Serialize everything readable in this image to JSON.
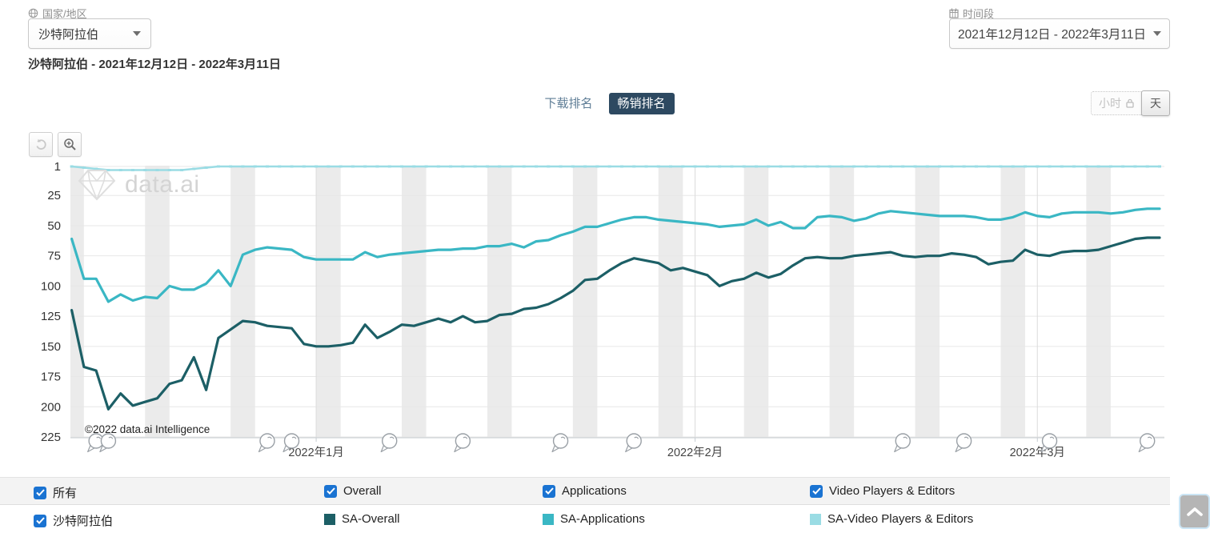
{
  "header": {
    "country_label": "国家/地区",
    "country_value": "沙特阿拉伯",
    "period_label": "时间段",
    "period_value": "2021年12月12日 - 2022年3月11日",
    "title": "沙特阿拉伯 - 2021年12月12日 - 2022年3月11日"
  },
  "tabs": {
    "download": "下载排名",
    "grossing": "畅销排名"
  },
  "granularity": {
    "hour": "小时",
    "day": "天"
  },
  "colors": {
    "checkbox_blue": "#1a73d2",
    "tab_active_bg": "#2d4961",
    "weekend_band": "#ebebeb",
    "gridline": "#e7e7e7",
    "month_line": "#dcdcdc",
    "axis_line": "#c7cdd2",
    "marker_stroke": "#9aa0a6"
  },
  "chart_data": {
    "type": "line",
    "title": "沙特阿拉伯 - 2021年12月12日 - 2022年3月11日",
    "x_start_date": "2021-12-12",
    "x_end_date": "2022-03-11",
    "days": 90,
    "y_axis": {
      "inverted": true,
      "min": 1,
      "max": 225,
      "ticks": [
        1,
        25,
        50,
        75,
        100,
        125,
        150,
        175,
        200,
        225
      ]
    },
    "x_ticks": [
      {
        "day": 20,
        "label": "2022年1月"
      },
      {
        "day": 51,
        "label": "2022年2月"
      },
      {
        "day": 79,
        "label": "2022年3月"
      }
    ],
    "weekend_band_start_days": [
      6,
      13,
      20,
      27,
      34,
      41,
      48,
      55,
      62,
      69,
      76,
      83
    ],
    "annotation_marker_days": [
      2,
      3,
      16,
      18,
      26,
      32,
      40,
      46,
      68,
      73,
      80,
      88
    ],
    "series": [
      {
        "name": "SA-Video Players & Editors",
        "color": "#9adce4",
        "markers": true,
        "values": [
          1,
          2,
          3,
          4,
          4,
          4,
          4,
          4,
          4,
          4,
          3,
          2,
          1,
          1,
          1,
          1,
          1,
          1,
          1,
          1,
          1,
          1,
          1,
          1,
          1,
          1,
          1,
          1,
          1,
          1,
          1,
          1,
          1,
          1,
          1,
          1,
          1,
          1,
          1,
          1,
          1,
          1,
          1,
          1,
          1,
          1,
          1,
          1,
          1,
          1,
          1,
          1,
          1,
          1,
          1,
          1,
          1,
          1,
          1,
          1,
          1,
          1,
          1,
          1,
          1,
          1,
          1,
          1,
          1,
          1,
          1,
          1,
          1,
          1,
          1,
          1,
          1,
          1,
          1,
          1,
          1,
          1,
          1,
          1,
          1,
          1,
          1,
          1,
          1,
          1
        ]
      },
      {
        "name": "SA-Applications",
        "color": "#3ab7c4",
        "markers": false,
        "values": [
          61,
          94,
          94,
          113,
          107,
          112,
          109,
          110,
          100,
          103,
          103,
          98,
          87,
          100,
          74,
          70,
          68,
          69,
          70,
          76,
          78,
          78,
          78,
          78,
          72,
          76,
          74,
          73,
          72,
          71,
          70,
          70,
          69,
          69,
          67,
          67,
          65,
          68,
          63,
          62,
          58,
          55,
          51,
          51,
          48,
          45,
          43,
          43,
          45,
          46,
          47,
          48,
          49,
          51,
          50,
          49,
          45,
          50,
          47,
          52,
          52,
          43,
          42,
          43,
          46,
          44,
          40,
          38,
          39,
          40,
          41,
          42,
          42,
          42,
          43,
          45,
          45,
          43,
          39,
          42,
          43,
          40,
          39,
          39,
          39,
          40,
          39,
          37,
          36,
          36
        ]
      },
      {
        "name": "SA-Overall",
        "color": "#1c5f66",
        "markers": false,
        "values": [
          120,
          167,
          170,
          202,
          189,
          199,
          196,
          193,
          181,
          178,
          159,
          186,
          143,
          136,
          129,
          130,
          133,
          134,
          135,
          148,
          150,
          150,
          149,
          147,
          132,
          143,
          138,
          132,
          133,
          130,
          127,
          130,
          125,
          130,
          129,
          124,
          123,
          119,
          118,
          115,
          110,
          104,
          95,
          94,
          87,
          81,
          77,
          79,
          81,
          87,
          85,
          88,
          91,
          100,
          96,
          94,
          89,
          93,
          90,
          83,
          77,
          76,
          77,
          77,
          75,
          74,
          73,
          72,
          75,
          76,
          75,
          75,
          73,
          74,
          76,
          82,
          80,
          79,
          70,
          74,
          75,
          72,
          71,
          71,
          70,
          67,
          64,
          61,
          60,
          60
        ]
      }
    ],
    "watermark": "data.ai",
    "copyright": "©2022 data.ai Intelligence"
  },
  "legend": {
    "rows": [
      {
        "items": [
          {
            "type": "checkbox",
            "checked": true,
            "label": "所有"
          },
          {
            "type": "checkbox",
            "checked": true,
            "label": "Overall"
          },
          {
            "type": "checkbox",
            "checked": true,
            "label": "Applications"
          },
          {
            "type": "checkbox",
            "checked": true,
            "label": "Video Players & Editors"
          }
        ]
      },
      {
        "items": [
          {
            "type": "checkbox",
            "checked": true,
            "label": "沙特阿拉伯"
          },
          {
            "type": "swatch",
            "series_index": 2,
            "label": "SA-Overall"
          },
          {
            "type": "swatch",
            "series_index": 1,
            "label": "SA-Applications"
          },
          {
            "type": "swatch",
            "series_index": 0,
            "label": "SA-Video Players & Editors"
          }
        ]
      }
    ]
  }
}
